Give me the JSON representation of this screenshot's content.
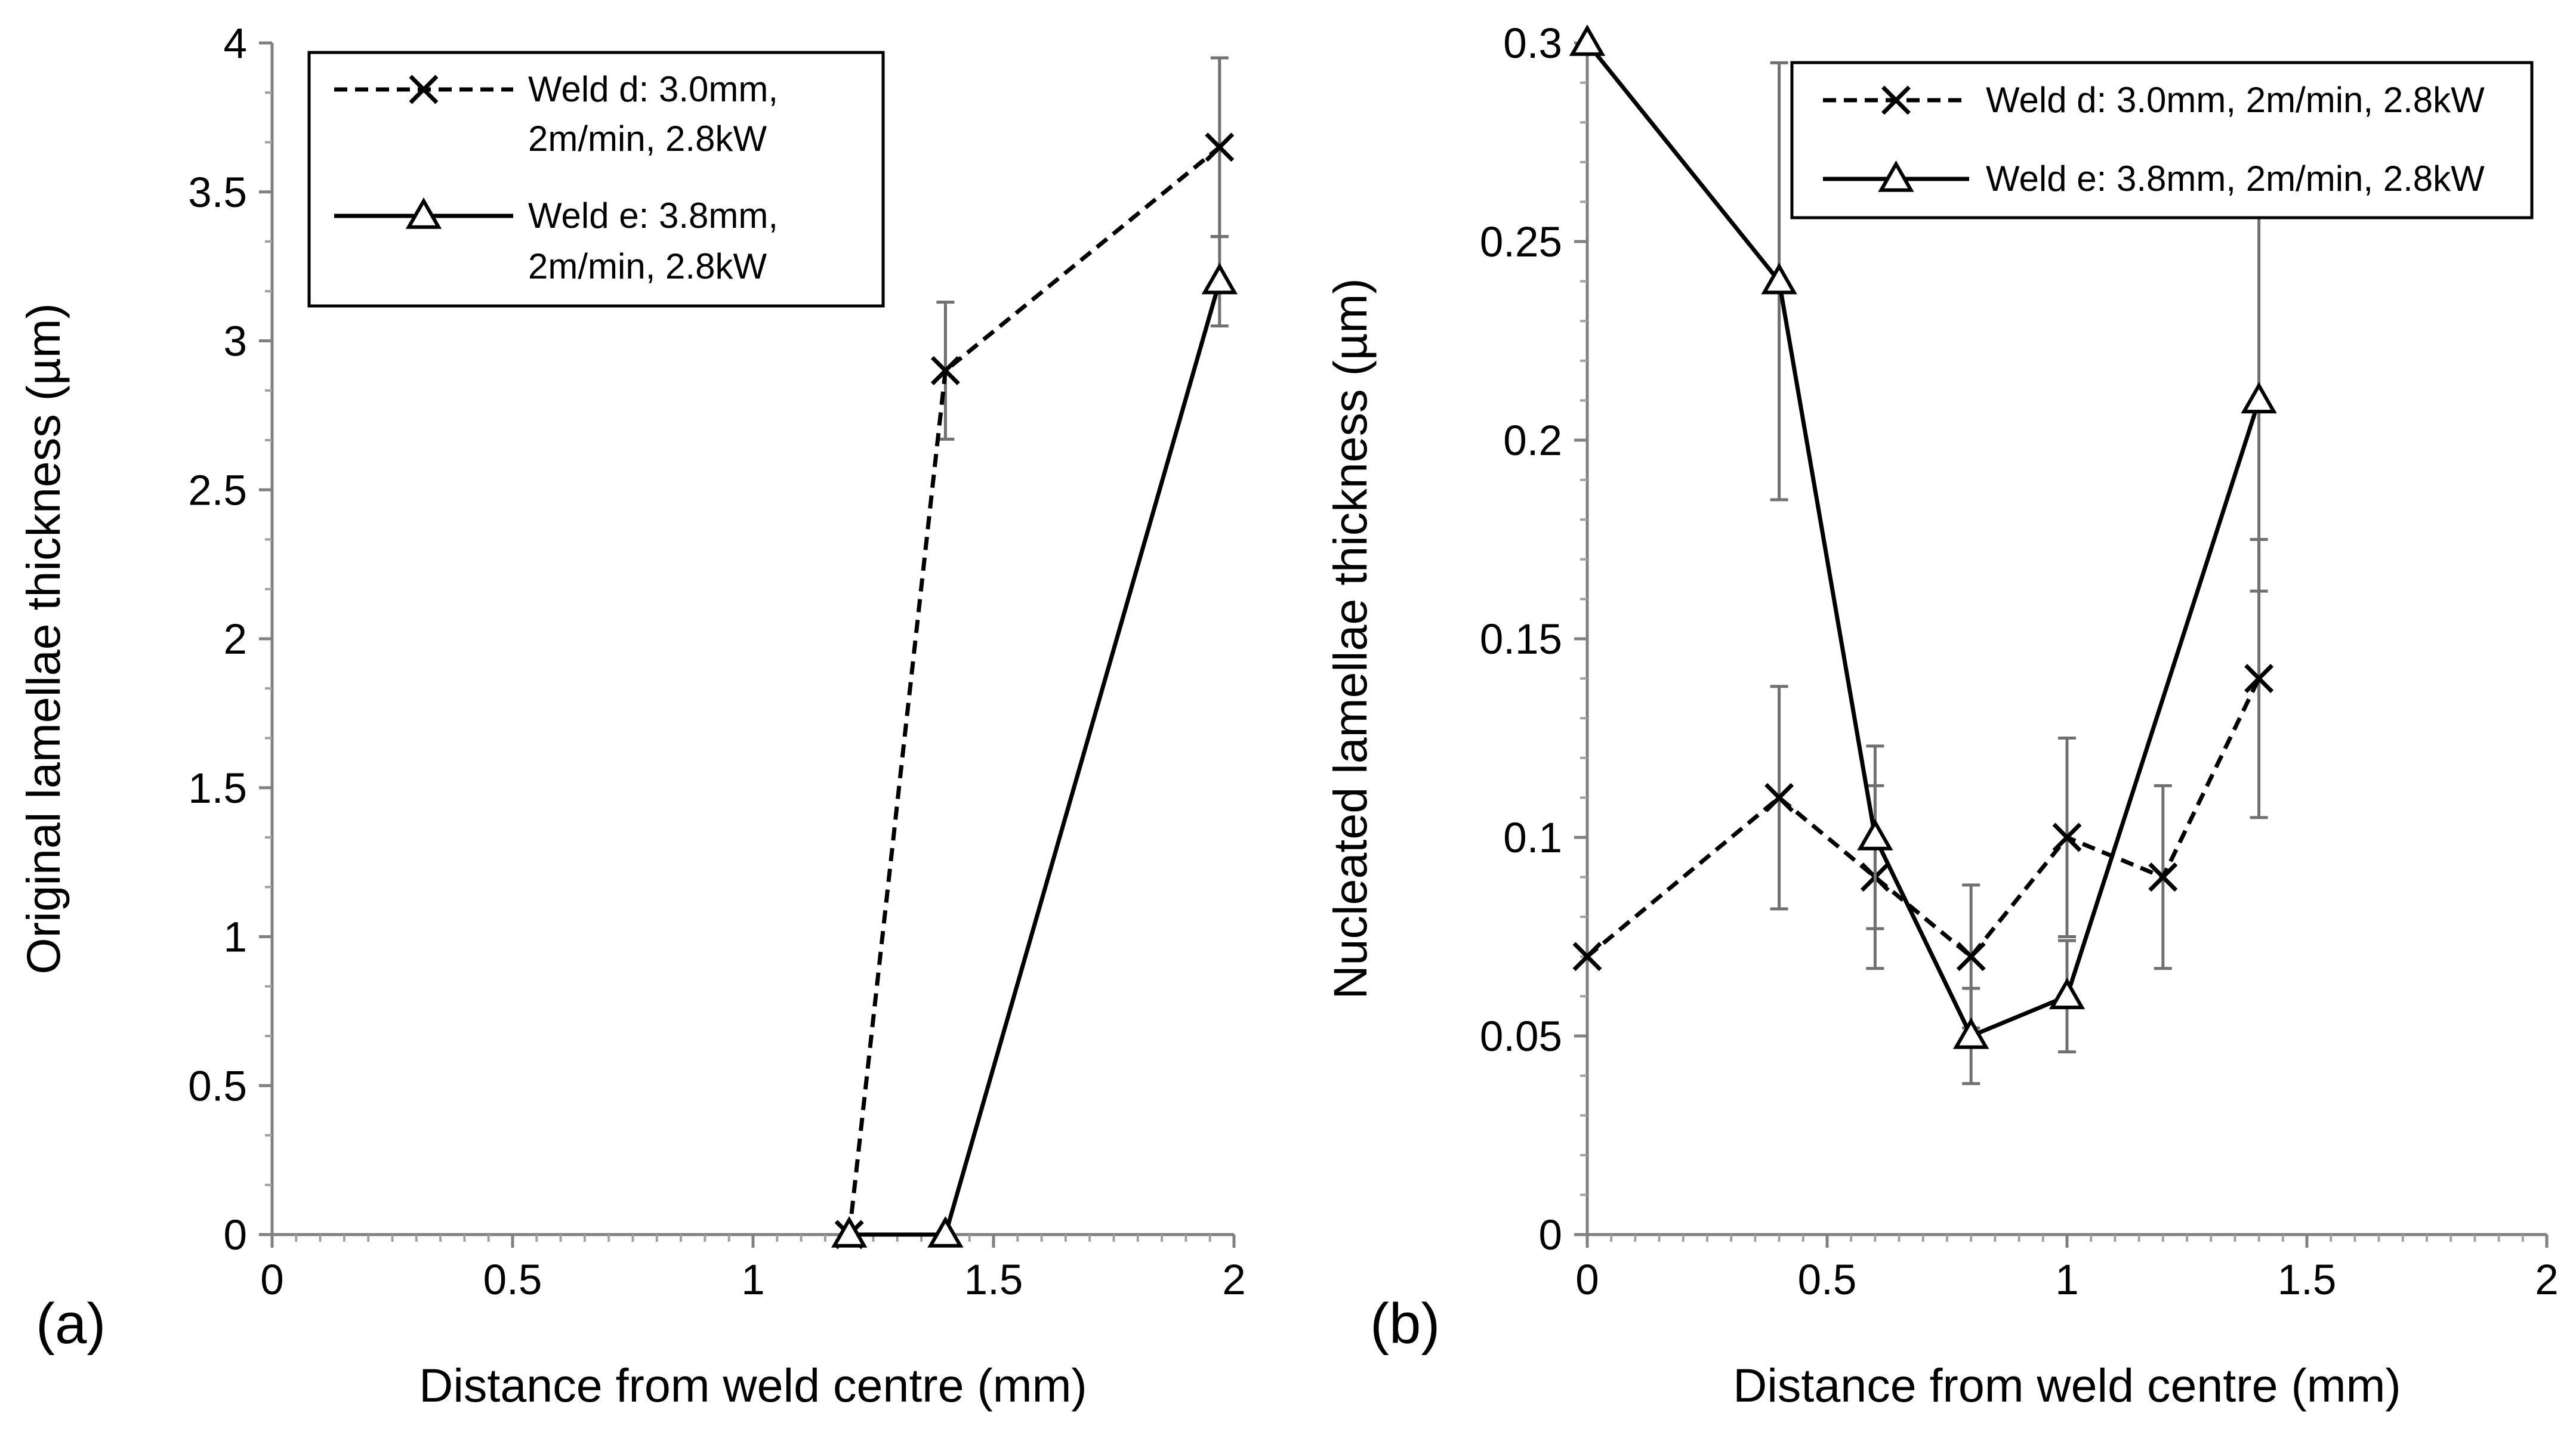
{
  "chart_data": [
    {
      "type": "line",
      "panel_label": "(a)",
      "xlabel": "Distance from weld centre (mm)",
      "ylabel": "Original lamellae thickness (µm)",
      "xlim": [
        0,
        2
      ],
      "ylim": [
        0,
        4
      ],
      "xticks": [
        0,
        0.5,
        1,
        1.5,
        2
      ],
      "xtick_labels": [
        "0",
        "0.5",
        "1",
        "1.5",
        "2"
      ],
      "yticks": [
        0,
        0.5,
        1,
        1.5,
        2,
        2.5,
        3,
        3.5,
        4
      ],
      "ytick_labels": [
        "0",
        "0.5",
        "1",
        "1.5",
        "2",
        "2.5",
        "3",
        "3.5",
        "4"
      ],
      "grid": false,
      "legend": {
        "placement": "top-left"
      },
      "series": [
        {
          "name": "Weld d: 3.0mm, 2m/min, 2.8kW",
          "legend_lines": [
            "Weld d: 3.0mm,",
            "2m/min, 2.8kW"
          ],
          "marker": "x",
          "dashed": true,
          "x": [
            1.2,
            1.4,
            1.97
          ],
          "y": [
            0,
            2.9,
            3.65
          ],
          "err": [
            null,
            0.23,
            0.3
          ]
        },
        {
          "name": "Weld e: 3.8mm, 2m/min, 2.8kW",
          "legend_lines": [
            "Weld e: 3.8mm,",
            "2m/min, 2.8kW"
          ],
          "marker": "triangle",
          "dashed": false,
          "x": [
            1.2,
            1.4,
            1.97
          ],
          "y": [
            0,
            0,
            3.2
          ],
          "err": [
            null,
            null,
            0.15
          ]
        }
      ]
    },
    {
      "type": "line",
      "panel_label": "(b)",
      "xlabel": "Distance from weld centre (mm)",
      "ylabel": "Nucleated lamellae thickness (µm)",
      "xlim": [
        0,
        2
      ],
      "ylim": [
        0,
        0.3
      ],
      "xticks": [
        0,
        0.5,
        1,
        1.5,
        2
      ],
      "xtick_labels": [
        "0",
        "0.5",
        "1",
        "1.5",
        "2"
      ],
      "yticks": [
        0,
        0.05,
        0.1,
        0.15,
        0.2,
        0.25,
        0.3
      ],
      "ytick_labels": [
        "0",
        "0.05",
        "0.1",
        "0.15",
        "0.2",
        "0.25",
        "0.3"
      ],
      "grid": false,
      "legend": {
        "placement": "top-right"
      },
      "series": [
        {
          "name": "Weld d: 3.0mm, 2m/min, 2.8kW",
          "legend_lines": [
            "Weld d: 3.0mm, 2m/min, 2.8kW"
          ],
          "marker": "x",
          "dashed": true,
          "x": [
            0,
            0.4,
            0.6,
            0.8,
            1.0,
            1.2,
            1.4
          ],
          "y": [
            0.07,
            0.11,
            0.09,
            0.07,
            0.1,
            0.09,
            0.14
          ],
          "err": [
            null,
            0.028,
            0.023,
            0.018,
            0.025,
            0.023,
            0.035
          ]
        },
        {
          "name": "Weld e: 3.8mm, 2m/min, 2.8kW",
          "legend_lines": [
            "Weld e: 3.8mm, 2m/min, 2.8kW"
          ],
          "marker": "triangle",
          "dashed": false,
          "x": [
            0,
            0.4,
            0.6,
            0.8,
            1.0,
            1.2,
            1.4
          ],
          "y": [
            0.3,
            0.24,
            0.1,
            0.05,
            0.06,
            null,
            0.21
          ],
          "err": [
            null,
            0.055,
            0.023,
            0.012,
            0.014,
            null,
            0.048
          ]
        }
      ]
    }
  ]
}
